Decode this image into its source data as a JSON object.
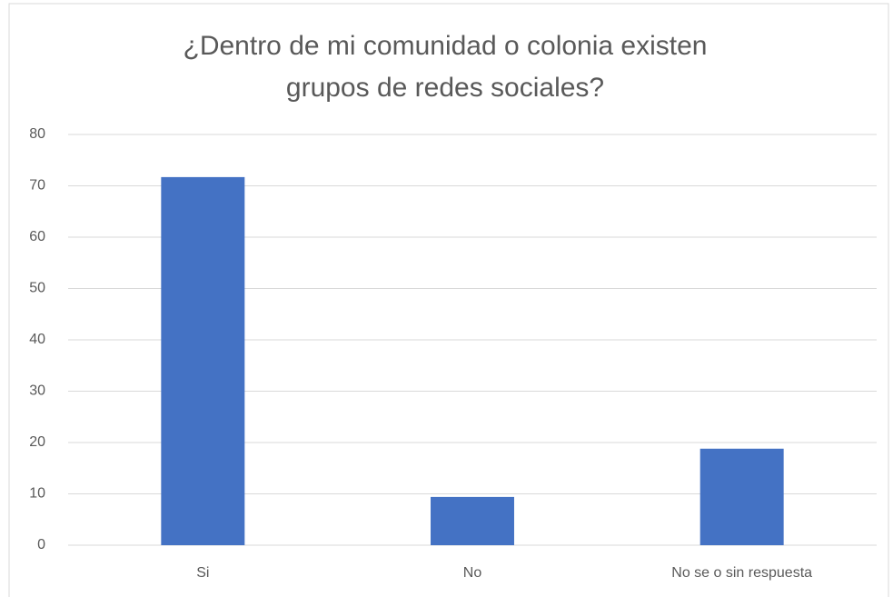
{
  "chart_data": {
    "type": "bar",
    "title": "¿Dentro de mi comunidad o colonia existen grupos de redes sociales?",
    "categories": [
      "Si",
      "No",
      "No se o sin respuesta"
    ],
    "values": [
      71.7,
      9.4,
      18.8
    ],
    "color": "#4472c4",
    "ylim": [
      0,
      80
    ],
    "yticks": [
      0,
      10,
      20,
      30,
      40,
      50,
      60,
      70,
      80
    ],
    "grid": true
  }
}
